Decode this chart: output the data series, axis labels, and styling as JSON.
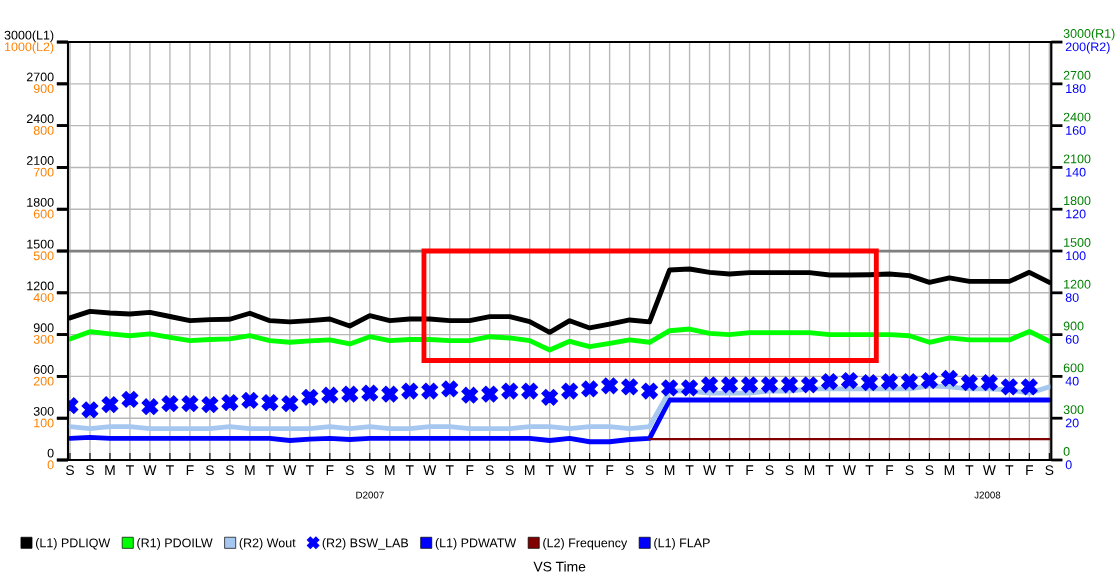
{
  "chart_data": {
    "type": "line",
    "categories": [
      "S",
      "S",
      "M",
      "T",
      "W",
      "T",
      "F",
      "S",
      "S",
      "M",
      "T",
      "W",
      "T",
      "F",
      "S",
      "S",
      "M",
      "T",
      "W",
      "T",
      "F",
      "S",
      "S",
      "M",
      "T",
      "W",
      "T",
      "F",
      "S",
      "S",
      "M",
      "T",
      "W",
      "T",
      "F",
      "S",
      "S",
      "M",
      "T",
      "W",
      "T",
      "F",
      "S",
      "S",
      "M",
      "T",
      "W",
      "T",
      "F",
      "S"
    ],
    "ylim": [
      0,
      3000
    ],
    "yticks": [
      0,
      300,
      600,
      900,
      1200,
      1500,
      1800,
      2100,
      2400,
      2700,
      {
        "value": 3000,
        "label": "3000(L1)"
      }
    ],
    "y2lim": [
      0,
      200
    ],
    "y2ticks": [
      0,
      20,
      40,
      60,
      80,
      100,
      120,
      140,
      160,
      180,
      {
        "value": 200,
        "label": "200(R2)"
      }
    ],
    "y3lim": [
      0,
      1000
    ],
    "y3ticks": [
      0,
      100,
      200,
      300,
      400,
      500,
      600,
      700,
      800,
      900,
      {
        "value": 1000,
        "label": "1000(L2)"
      }
    ],
    "grid": true,
    "legend": "bottom",
    "line_style": "solid",
    "annotations": [
      "0",
      "300",
      "600",
      "900",
      "1200",
      "1500",
      "1800",
      "2100",
      "2400",
      "2700",
      "3000(R1)",
      "D2007",
      "J2008",
      "VS Time"
    ],
    "ref_lines": [
      {
        "axis": "y",
        "value": 1500,
        "color": "#808080"
      }
    ],
    "series": [
      {
        "name": "(L1) PDLIQW",
        "color": "#000000",
        "values": [
          1020,
          1067,
          1055,
          1048,
          1060,
          1030,
          1000,
          1008,
          1010,
          1053,
          1000,
          991,
          1000,
          1012,
          962,
          1036,
          1000,
          1012,
          1012,
          1000,
          1000,
          1029,
          1029,
          993,
          916,
          1000,
          948,
          976,
          1005,
          991,
          1364,
          1371,
          1347,
          1335,
          1345,
          1345,
          1345,
          1345,
          1328,
          1328,
          1330,
          1335,
          1323,
          1275,
          1307,
          1282,
          1282,
          1282,
          1347,
          1275
        ]
      },
      {
        "name": "(R1) PDOILW",
        "color": "#00ff00",
        "values": [
          869,
          921,
          905,
          892,
          905,
          880,
          857,
          865,
          869,
          892,
          857,
          845,
          855,
          862,
          833,
          885,
          857,
          865,
          865,
          857,
          857,
          885,
          876,
          857,
          790,
          852,
          814,
          837,
          862,
          845,
          928,
          940,
          909,
          900,
          914,
          914,
          914,
          914,
          900,
          900,
          900,
          900,
          892,
          845,
          876,
          862,
          862,
          862,
          923,
          852
        ]
      },
      {
        "name": "(R2) Wout",
        "color": "#a6c8f0",
        "axis": "y2",
        "values": [
          16,
          15,
          16,
          16,
          15,
          15,
          15,
          15,
          16,
          15,
          15,
          15,
          15,
          16,
          15,
          16,
          15,
          15,
          16,
          16,
          15,
          15,
          15,
          16,
          16,
          15,
          16,
          16,
          15,
          16,
          33,
          33,
          32,
          32,
          32,
          33,
          33,
          34,
          34,
          34,
          34,
          34,
          34,
          35.5,
          35,
          34,
          34,
          33.5,
          32,
          35
        ]
      },
      {
        "name": "(R2) BSW_LAB",
        "color": "#0000ff",
        "axis": "y2",
        "type": "scatter",
        "marker": "cross",
        "values": [
          26,
          24,
          26.5,
          29,
          25.5,
          27,
          27,
          26.5,
          27.5,
          28.5,
          27.5,
          27,
          30,
          31,
          31.5,
          32,
          31.5,
          33,
          33,
          34,
          31,
          31.5,
          33,
          33,
          30,
          33,
          34,
          35.5,
          35,
          33,
          34.5,
          34.5,
          36,
          36,
          36,
          36,
          36,
          36,
          37.5,
          38,
          37,
          37.5,
          37.5,
          38,
          39,
          37,
          37,
          35,
          35,
          null
        ]
      },
      {
        "name": "(L1) PDWATW",
        "color": "#0000ff",
        "values": [
          155,
          162,
          155,
          155,
          155,
          155,
          155,
          155,
          155,
          155,
          155,
          140,
          150,
          155,
          147,
          155,
          155,
          155,
          155,
          155,
          155,
          155,
          155,
          155,
          140,
          155,
          131,
          131,
          147,
          155,
          431,
          431,
          431,
          431,
          431,
          431,
          431,
          431,
          431,
          431,
          431,
          431,
          431,
          431,
          431,
          431,
          431,
          431,
          431,
          431
        ]
      },
      {
        "name": "(L2) Frequency",
        "color": "#800000",
        "axis": "y3",
        "values": [
          null,
          null,
          null,
          null,
          null,
          null,
          null,
          null,
          null,
          null,
          null,
          null,
          null,
          null,
          null,
          null,
          null,
          null,
          null,
          null,
          null,
          null,
          null,
          null,
          null,
          null,
          null,
          null,
          null,
          50,
          50,
          50,
          50,
          50,
          50,
          50,
          50,
          50,
          50,
          50,
          50,
          50,
          50,
          50,
          50,
          50,
          50,
          50,
          50,
          50
        ]
      },
      {
        "name": "(L1) FLAP",
        "color": "#0000ff",
        "values": [
          null,
          null,
          null,
          null,
          null,
          null,
          null,
          null,
          null,
          null,
          null,
          null,
          null,
          null,
          null,
          null,
          null,
          null,
          null,
          null,
          null,
          null,
          null,
          null,
          null,
          null,
          null,
          null,
          null,
          null,
          null,
          null,
          null,
          null,
          null,
          null,
          null,
          null,
          null,
          null,
          null,
          null,
          null,
          null,
          null,
          null,
          null,
          null,
          null,
          null
        ]
      }
    ]
  }
}
